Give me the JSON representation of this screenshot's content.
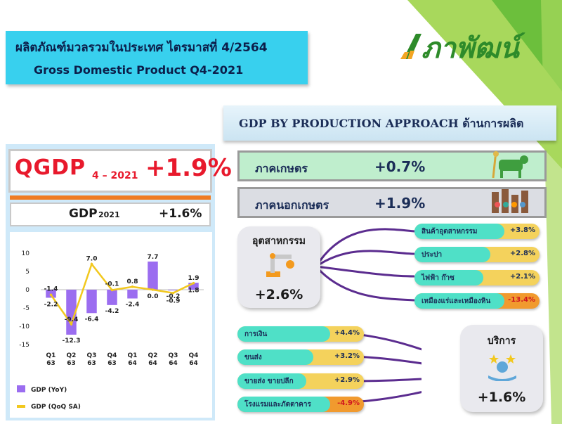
{
  "header": {
    "title_th": "ผลิตภัณฑ์มวลรวมในประเทศ ไตรมาสที่ 4/2564",
    "title_en": "Gross Domestic Product Q4-2021"
  },
  "logo": {
    "text": "ภาพัฒน์"
  },
  "qgdp": {
    "label": "QGDP",
    "period": "4 – 2021",
    "value": "+1.9%"
  },
  "gdp_year": {
    "label": "GDP",
    "year": "2021",
    "value": "+1.6%"
  },
  "production": {
    "header": "GDP BY PRODUCTION APPROACH ด้านการผลิต",
    "agri": {
      "label": "ภาคเกษตร",
      "value": "+0.7%"
    },
    "nonagri": {
      "label": "ภาคนอกเกษตร",
      "value": "+1.9%"
    },
    "industry": {
      "label": "อุตสาหกรรม",
      "value": "+2.6%",
      "items": [
        {
          "label": "สินค้าอุตสาหกรรม",
          "value": "+3.8%"
        },
        {
          "label": "ประปา",
          "value": "+2.8%"
        },
        {
          "label": "ไฟฟ้า ก๊าซ",
          "value": "+2.1%"
        },
        {
          "label": "เหมืองแร่และเหมืองหิน",
          "value": "-13.4%"
        }
      ]
    },
    "services": {
      "label": "บริการ",
      "value": "+1.6%",
      "items": [
        {
          "label": "การเงิน",
          "value": "+4.4%"
        },
        {
          "label": "ขนส่ง",
          "value": "+3.2%"
        },
        {
          "label": "ขายส่ง ขายปลีก",
          "value": "+2.9%"
        },
        {
          "label": "โรงแรมและภัตตาคาร",
          "value": "-4.9%"
        }
      ]
    }
  },
  "chart_data": {
    "type": "bar",
    "categories": [
      [
        "Q1",
        "63"
      ],
      [
        "Q2",
        "63"
      ],
      [
        "Q3",
        "63"
      ],
      [
        "Q4",
        "63"
      ],
      [
        "Q1",
        "64"
      ],
      [
        "Q2",
        "64"
      ],
      [
        "Q3",
        "64"
      ],
      [
        "Q4",
        "64"
      ]
    ],
    "ylim": [
      -15,
      10
    ],
    "yticks": [
      "10",
      "5",
      "0",
      "-5",
      "-10",
      "-15"
    ],
    "series": [
      {
        "name": "GDP (YoY)",
        "type": "bar",
        "color": "#9b6df0",
        "values": [
          -2.2,
          -12.3,
          -6.4,
          -4.2,
          -2.4,
          7.7,
          -0.2,
          1.9
        ],
        "labels": [
          "-2.2",
          "-12.3",
          "-6.4",
          "-4.2",
          "-2.4",
          "7.7",
          "-0.2",
          "1.9"
        ]
      },
      {
        "name": "GDP (QoQ SA)",
        "type": "line",
        "color": "#f2c81e",
        "values": [
          -1.4,
          -9.4,
          7.0,
          -0.1,
          0.8,
          0.0,
          -0.9,
          1.8
        ],
        "labels": [
          "-1.4",
          "-9.4",
          "7.0",
          "-0.1",
          "0.8",
          "0.0",
          "-0.9",
          "1.8"
        ]
      }
    ]
  }
}
